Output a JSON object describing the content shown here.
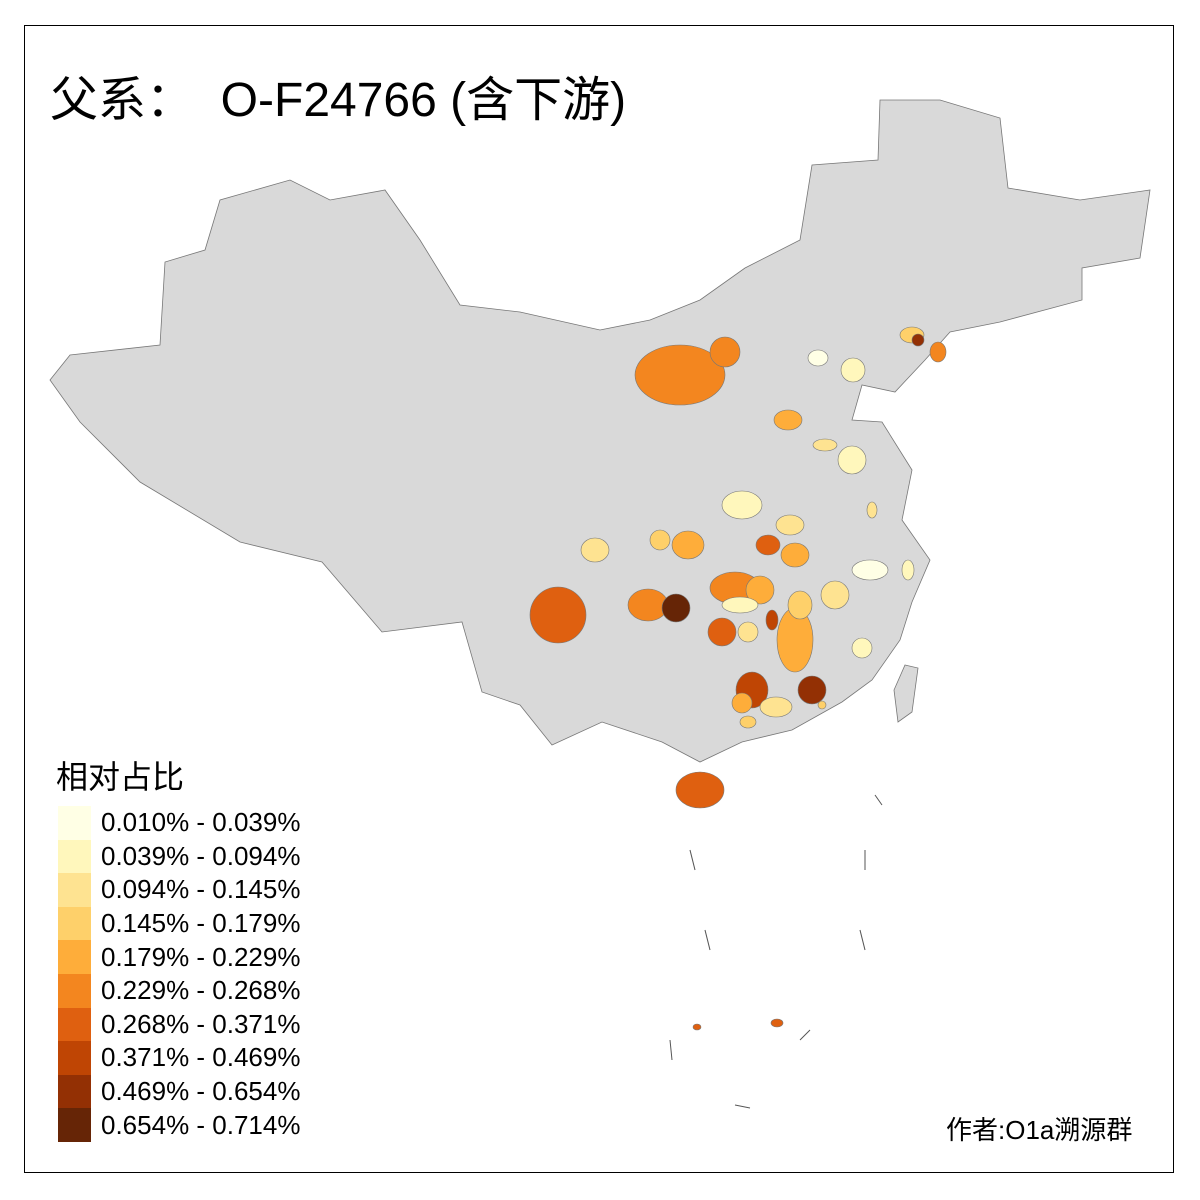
{
  "title": "父系：  O-F24766 (含下游)",
  "legend": {
    "title": "相对占比",
    "items": [
      {
        "label": "0.010% - 0.039%",
        "color": "#FFFFE5"
      },
      {
        "label": "0.039% - 0.094%",
        "color": "#FFF7BC"
      },
      {
        "label": "0.094% - 0.145%",
        "color": "#FEE391"
      },
      {
        "label": "0.145% - 0.179%",
        "color": "#FED06A"
      },
      {
        "label": "0.179% - 0.229%",
        "color": "#FEAD3A"
      },
      {
        "label": "0.229% - 0.268%",
        "color": "#F3861F"
      },
      {
        "label": "0.268% - 0.371%",
        "color": "#DF6010"
      },
      {
        "label": "0.371% - 0.469%",
        "color": "#BF4504"
      },
      {
        "label": "0.469% - 0.654%",
        "color": "#933004"
      },
      {
        "label": "0.654% - 0.714%",
        "color": "#662506"
      }
    ]
  },
  "base_color": "#D9D9D9",
  "author": "作者:O1a溯源群"
}
